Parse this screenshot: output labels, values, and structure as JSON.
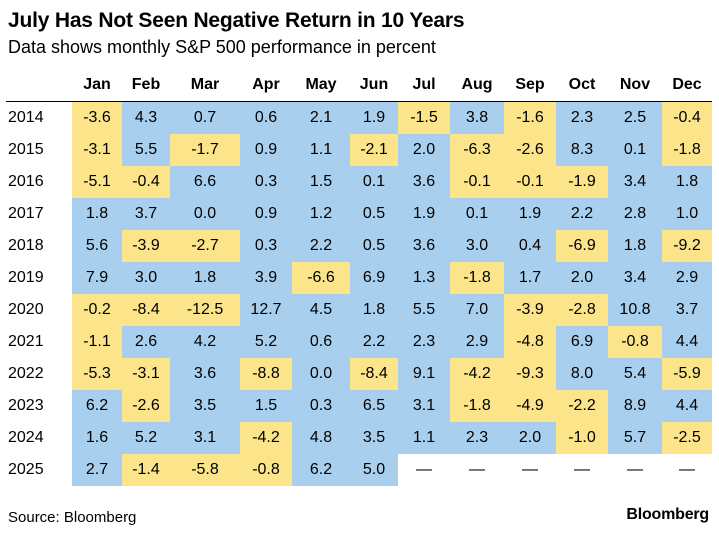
{
  "title": "July Has Not Seen Negative Return in 10 Years",
  "subtitle": "Data shows monthly S&P 500 performance in percent",
  "source": "Source: Bloomberg",
  "brand": "Bloomberg",
  "colors": {
    "negative": "#fbe48a",
    "positive": "#a8d0ee"
  },
  "chart_data": {
    "type": "table",
    "title": "July Has Not Seen Negative Return in 10 Years",
    "subtitle": "Data shows monthly S&P 500 performance in percent",
    "columns": [
      "Jan",
      "Feb",
      "Mar",
      "Apr",
      "May",
      "Jun",
      "Jul",
      "Aug",
      "Sep",
      "Oct",
      "Nov",
      "Dec"
    ],
    "rows": [
      {
        "year": "2014",
        "values": [
          "-3.6",
          "4.3",
          "0.7",
          "0.6",
          "2.1",
          "1.9",
          "-1.5",
          "3.8",
          "-1.6",
          "2.3",
          "2.5",
          "-0.4"
        ]
      },
      {
        "year": "2015",
        "values": [
          "-3.1",
          "5.5",
          "-1.7",
          "0.9",
          "1.1",
          "-2.1",
          "2.0",
          "-6.3",
          "-2.6",
          "8.3",
          "0.1",
          "-1.8"
        ]
      },
      {
        "year": "2016",
        "values": [
          "-5.1",
          "-0.4",
          "6.6",
          "0.3",
          "1.5",
          "0.1",
          "3.6",
          "-0.1",
          "-0.1",
          "-1.9",
          "3.4",
          "1.8"
        ]
      },
      {
        "year": "2017",
        "values": [
          "1.8",
          "3.7",
          "0.0",
          "0.9",
          "1.2",
          "0.5",
          "1.9",
          "0.1",
          "1.9",
          "2.2",
          "2.8",
          "1.0"
        ]
      },
      {
        "year": "2018",
        "values": [
          "5.6",
          "-3.9",
          "-2.7",
          "0.3",
          "2.2",
          "0.5",
          "3.6",
          "3.0",
          "0.4",
          "-6.9",
          "1.8",
          "-9.2"
        ]
      },
      {
        "year": "2019",
        "values": [
          "7.9",
          "3.0",
          "1.8",
          "3.9",
          "-6.6",
          "6.9",
          "1.3",
          "-1.8",
          "1.7",
          "2.0",
          "3.4",
          "2.9"
        ]
      },
      {
        "year": "2020",
        "values": [
          "-0.2",
          "-8.4",
          "-12.5",
          "12.7",
          "4.5",
          "1.8",
          "5.5",
          "7.0",
          "-3.9",
          "-2.8",
          "10.8",
          "3.7"
        ]
      },
      {
        "year": "2021",
        "values": [
          "-1.1",
          "2.6",
          "4.2",
          "5.2",
          "0.6",
          "2.2",
          "2.3",
          "2.9",
          "-4.8",
          "6.9",
          "-0.8",
          "4.4"
        ]
      },
      {
        "year": "2022",
        "values": [
          "-5.3",
          "-3.1",
          "3.6",
          "-8.8",
          "0.0",
          "-8.4",
          "9.1",
          "-4.2",
          "-9.3",
          "8.0",
          "5.4",
          "-5.9"
        ]
      },
      {
        "year": "2023",
        "values": [
          "6.2",
          "-2.6",
          "3.5",
          "1.5",
          "0.3",
          "6.5",
          "3.1",
          "-1.8",
          "-4.9",
          "-2.2",
          "8.9",
          "4.4"
        ]
      },
      {
        "year": "2024",
        "values": [
          "1.6",
          "5.2",
          "3.1",
          "-4.2",
          "4.8",
          "3.5",
          "1.1",
          "2.3",
          "2.0",
          "-1.0",
          "5.7",
          "-2.5"
        ]
      },
      {
        "year": "2025",
        "values": [
          "2.7",
          "-1.4",
          "-5.8",
          "-0.8",
          "6.2",
          "5.0",
          "—",
          "—",
          "—",
          "—",
          "—",
          "—"
        ]
      }
    ]
  }
}
